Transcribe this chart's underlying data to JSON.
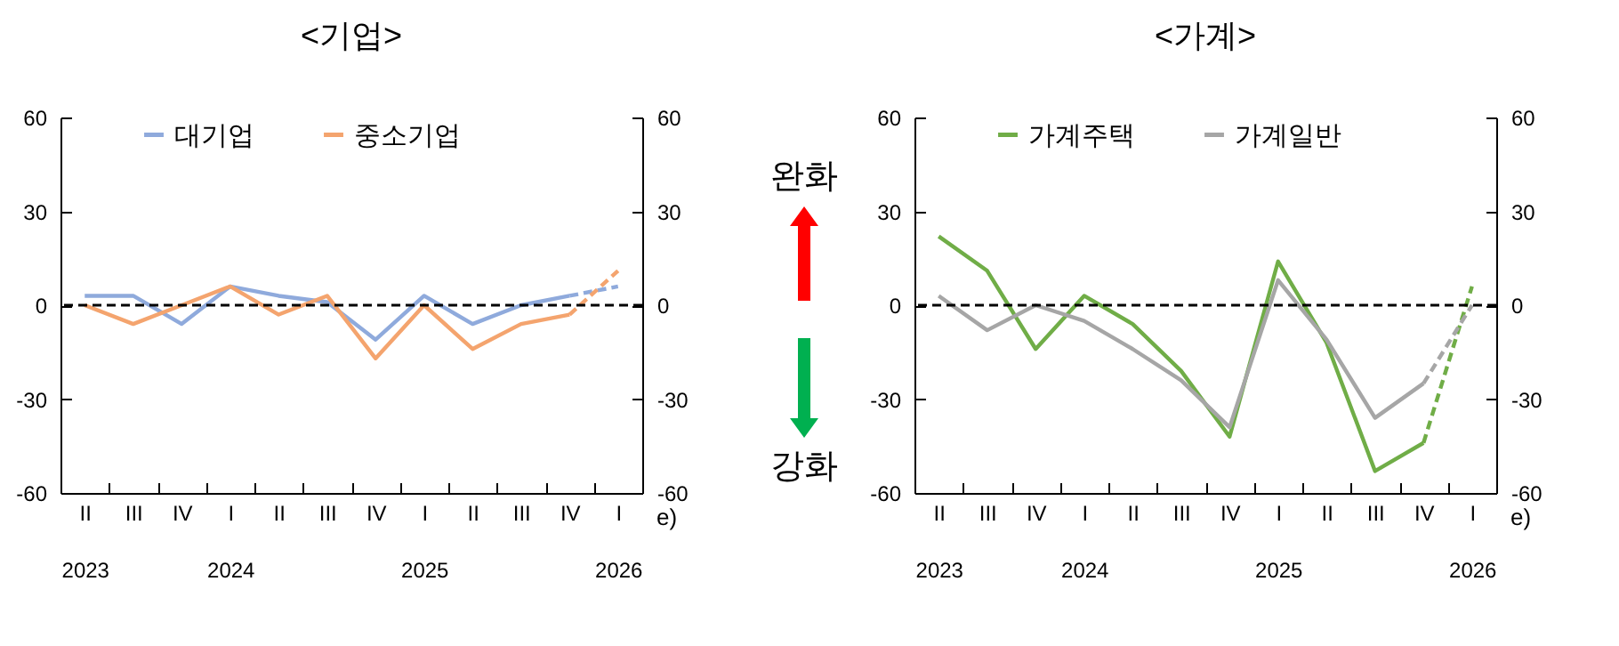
{
  "chart_data": [
    {
      "type": "line",
      "title": "<기업>",
      "categories": [
        "II\n2023",
        "III",
        "IV",
        "I\n2024",
        "II",
        "III",
        "IV",
        "I\n2025",
        "II",
        "III",
        "IV",
        "I\n2026"
      ],
      "series": [
        {
          "name": "대기업",
          "color": "#8faadc",
          "line_style": "solid",
          "values": [
            3,
            3,
            -6,
            6,
            3,
            1,
            -11,
            3,
            -6,
            0,
            3,
            null
          ]
        },
        {
          "color": "#8faadc",
          "line_style": "dashed",
          "values": [
            null,
            null,
            null,
            null,
            null,
            null,
            null,
            null,
            null,
            null,
            3,
            6
          ]
        },
        {
          "name": "중소기업",
          "color": "#f4a46e",
          "line_style": "solid",
          "values": [
            0,
            -6,
            0,
            6,
            -3,
            3,
            -17,
            0,
            -14,
            -6,
            -3,
            null
          ]
        },
        {
          "color": "#f4a46e",
          "line_style": "dashed",
          "values": [
            null,
            null,
            null,
            null,
            null,
            null,
            null,
            null,
            null,
            null,
            -3,
            11
          ]
        }
      ],
      "ylim": [
        -60,
        60
      ],
      "yticks": [
        -60,
        -30,
        0,
        30,
        60
      ],
      "y2lim": [
        -60,
        60
      ],
      "y2ticks": [
        -60,
        -30,
        0,
        30,
        60
      ],
      "ref_lines": [
        {
          "axis": "y",
          "value": 0,
          "color": "#000000",
          "line_style": "dashed"
        }
      ],
      "annotations": [
        "e)"
      ],
      "legend": "top",
      "grid": false,
      "marker": "none"
    },
    {
      "type": "other",
      "annotations": [
        "완화",
        "강화"
      ]
    },
    {
      "type": "line",
      "title": "<가계>",
      "categories": [
        "II\n2023",
        "III",
        "IV",
        "I\n2024",
        "II",
        "III",
        "IV",
        "I\n2025",
        "II",
        "III",
        "IV",
        "I\n2026"
      ],
      "series": [
        {
          "name": "가계주택",
          "color": "#70ad47",
          "line_style": "solid",
          "values": [
            22,
            11,
            -14,
            3,
            -6,
            -21,
            -42,
            14,
            -12,
            -53,
            -44,
            null
          ]
        },
        {
          "color": "#70ad47",
          "line_style": "dashed",
          "values": [
            null,
            null,
            null,
            null,
            null,
            null,
            null,
            null,
            null,
            null,
            -44,
            6
          ]
        },
        {
          "name": "가계일반",
          "color": "#a6a6a6",
          "line_style": "solid",
          "values": [
            3,
            -8,
            0,
            -5,
            -14,
            -24,
            -39,
            8,
            -11,
            -36,
            -25,
            null
          ]
        },
        {
          "color": "#a6a6a6",
          "line_style": "dashed",
          "values": [
            null,
            null,
            null,
            null,
            null,
            null,
            null,
            null,
            null,
            null,
            -25,
            0
          ]
        }
      ],
      "ylim": [
        -60,
        60
      ],
      "yticks": [
        -60,
        -30,
        0,
        30,
        60
      ],
      "y2lim": [
        -60,
        60
      ],
      "y2ticks": [
        -60,
        -30,
        0,
        30,
        60
      ],
      "ref_lines": [
        {
          "axis": "y",
          "value": 0,
          "color": "#000000",
          "line_style": "dashed"
        }
      ],
      "annotations": [
        "e)"
      ],
      "legend": "top",
      "grid": false,
      "marker": "none"
    }
  ]
}
